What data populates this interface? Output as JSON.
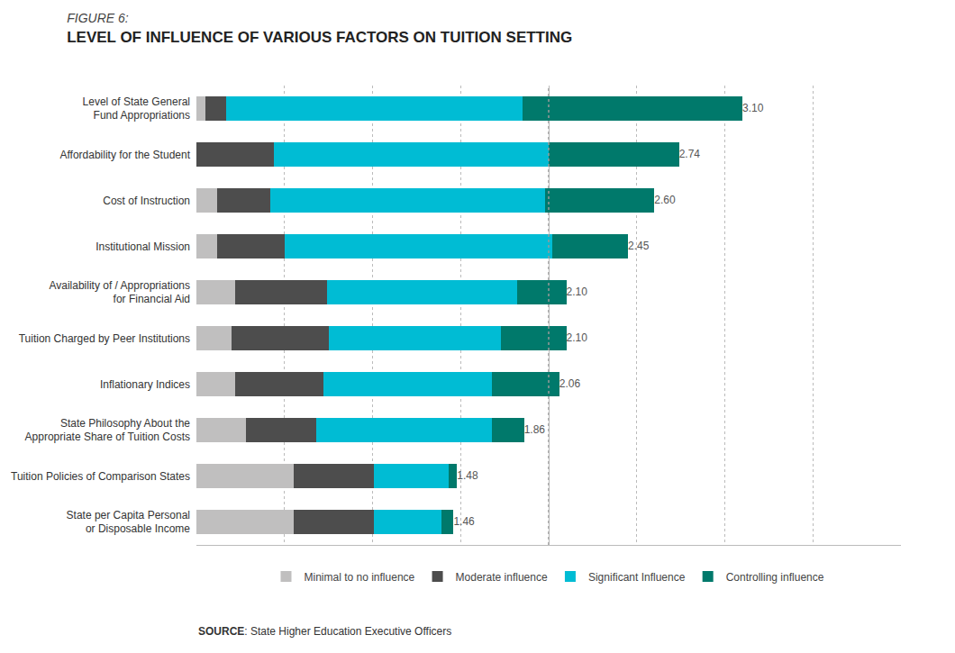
{
  "chart_data": {
    "type": "bar",
    "orientation": "horizontal",
    "stacked": true,
    "subtitle": "FIGURE 6:",
    "title": "LEVEL OF INFLUENCE OF VARIOUS FACTORS ON TUITION SETTING",
    "source": "SOURCE: State Higher Education Executive Officers",
    "categories": [
      "Level of State General\nFund Appropriations",
      "Affordability for the Student",
      "Cost of Instruction",
      "Institutional Mission",
      "Availability of / Appropriations\nfor Financial Aid",
      "Tuition Charged by Peer Institutions",
      "Inflationary Indices",
      "State Philosophy About the\nAppropriate Share of Tuition Costs",
      "Tuition Policies of Comparison States",
      "State per Capita Personal\nor Disposable Income"
    ],
    "series": [
      {
        "name": "Minimal to no influence",
        "color": "#c0bfbf",
        "values": [
          0.05,
          0.0,
          0.12,
          0.12,
          0.22,
          0.2,
          0.22,
          0.28,
          0.55,
          0.55
        ]
      },
      {
        "name": "Moderate influence",
        "color": "#4d4d4d",
        "values": [
          0.12,
          0.44,
          0.3,
          0.38,
          0.52,
          0.55,
          0.5,
          0.4,
          0.46,
          0.46
        ]
      },
      {
        "name": "Significant Influence",
        "color": "#00bcd4",
        "values": [
          1.68,
          1.56,
          1.56,
          1.52,
          1.08,
          0.98,
          0.96,
          1.0,
          0.42,
          0.38
        ]
      },
      {
        "name": "Controlling influence",
        "color": "#00796b",
        "values": [
          1.25,
          0.74,
          0.62,
          0.43,
          0.28,
          0.37,
          0.38,
          0.18,
          0.05,
          0.07
        ]
      }
    ],
    "averages": [
      3.1,
      2.74,
      2.6,
      2.45,
      2.1,
      2.1,
      2.06,
      1.86,
      1.48,
      1.46
    ],
    "average_labels": [
      "3.10",
      "2.74",
      "2.60",
      "2.45",
      "2.10",
      "2.10",
      "2.06",
      "1.86",
      "1.48",
      "1.46"
    ],
    "reference_x": 2.0,
    "xlim": [
      0,
      4.0
    ],
    "xticks": [
      0,
      0.5,
      1,
      1.5,
      2,
      2.5,
      3,
      3.5,
      4
    ],
    "grid": true,
    "tick_labels": "y",
    "legend": "bottom"
  }
}
